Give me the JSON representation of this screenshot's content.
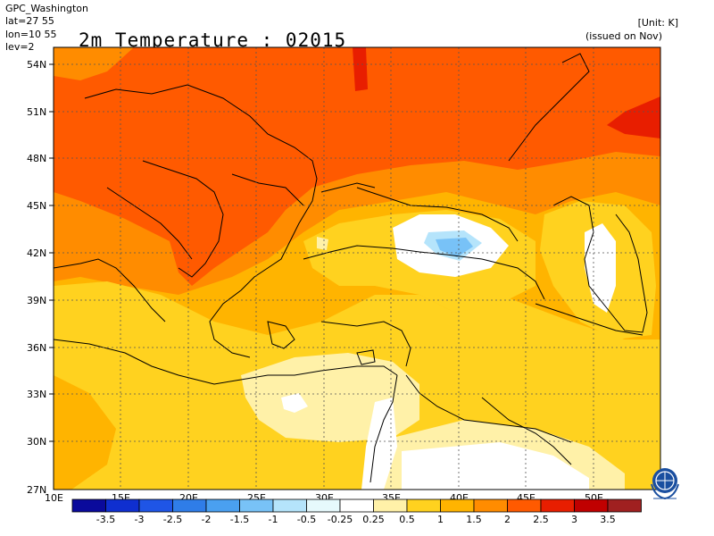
{
  "header": {
    "source": "GPC_Washington",
    "lat_line": "lat=27 55",
    "lon_line": "lon=10 55",
    "lev_line": "lev=2",
    "title": "2m Temperature : 02015",
    "unit": "[Unit: K]",
    "issued": "(issued on Nov)"
  },
  "map": {
    "lat_labels": [
      "54N",
      "51N",
      "48N",
      "45N",
      "42N",
      "39N",
      "36N",
      "33N",
      "30N",
      "27N"
    ],
    "lon_labels": [
      "10E",
      "15E",
      "20E",
      "25E",
      "30E",
      "35E",
      "40E",
      "45E",
      "50E"
    ],
    "extent": {
      "lon_min": 10,
      "lon_max": 55,
      "lat_min": 27,
      "lat_max": 55
    },
    "gridlines": true
  },
  "legend": {
    "labels": [
      "-3.5",
      "-3",
      "-2.5",
      "-2",
      "-1.5",
      "-1",
      "-0.5",
      "-0.25",
      "0.25",
      "0.5",
      "1",
      "1.5",
      "2",
      "2.5",
      "3",
      "3.5"
    ],
    "colors": [
      "#0a0a9c",
      "#0f2fd0",
      "#1f55e6",
      "#2f7de8",
      "#4aa0f0",
      "#78c2f7",
      "#b5e4fb",
      "#e6f9fc",
      "#ffffff",
      "#fff1a8",
      "#ffd21f",
      "#ffb400",
      "#ff8c00",
      "#ff5a00",
      "#e81e00",
      "#c00000",
      "#a02020"
    ]
  },
  "icons": {
    "logo": "wmo-emblem-icon"
  }
}
